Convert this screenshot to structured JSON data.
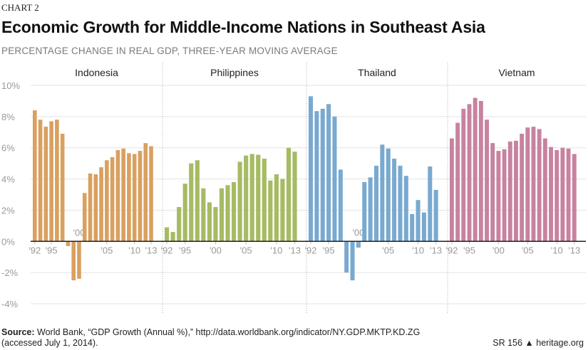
{
  "chart_label": "CHART 2",
  "title": "Economic Growth for Middle-Income Nations in Southeast Asia",
  "subtitle": "PERCENTAGE CHANGE IN REAL GDP, THREE-YEAR MOVING AVERAGE",
  "source_label": "Source:",
  "source_text": "World Bank, “GDP Growth (Annual %),” http://data.worldbank.org/indicator/NY.GDP.MKTP.KD.ZG",
  "source_text2": "(accessed July 1, 2014).",
  "report_id": "SR 156",
  "publisher": "heritage.org",
  "colors": {
    "Indonesia": "#d9a05f",
    "Philippines": "#a6bb63",
    "Thailand": "#79a9cf",
    "Vietnam": "#c7829f",
    "grid": "#e3e3e3",
    "zero": "#222222"
  },
  "chart_data": {
    "type": "bar",
    "title": "Economic Growth for Middle-Income Nations in Southeast Asia",
    "ylabel": "Percentage change in real GDP, three-year moving average",
    "ylim": [
      -4,
      10
    ],
    "yticks": [
      10,
      8,
      6,
      4,
      2,
      0,
      -2,
      -4
    ],
    "ytick_labels": [
      "10%",
      "8%",
      "6%",
      "4%",
      "2%",
      "0%",
      "-2%",
      "-4%"
    ],
    "grid": true,
    "x": [
      1992,
      1993,
      1994,
      1995,
      1996,
      1997,
      1998,
      1999,
      2000,
      2001,
      2002,
      2003,
      2004,
      2005,
      2006,
      2007,
      2008,
      2009,
      2010,
      2011,
      2012,
      2013
    ],
    "xtick_labels": {
      "1992": "'92",
      "1995": "'95",
      "2000": "'00",
      "2005": "'05",
      "2010": "'10",
      "2013": "'13"
    },
    "series": [
      {
        "name": "Indonesia",
        "values": [
          8.4,
          7.8,
          7.35,
          7.7,
          7.8,
          6.9,
          -0.3,
          -2.5,
          -2.4,
          3.1,
          4.35,
          4.3,
          4.75,
          5.2,
          5.4,
          5.85,
          5.95,
          5.65,
          5.6,
          5.8,
          6.3,
          6.1
        ]
      },
      {
        "name": "Philippines",
        "values": [
          0.9,
          0.6,
          2.2,
          3.7,
          5.0,
          5.2,
          3.4,
          2.5,
          2.2,
          3.4,
          3.6,
          3.8,
          5.1,
          5.5,
          5.6,
          5.55,
          5.3,
          3.9,
          4.3,
          4.0,
          6.0,
          5.75
        ]
      },
      {
        "name": "Thailand",
        "values": [
          9.3,
          8.35,
          8.5,
          8.8,
          8.0,
          4.6,
          -2.0,
          -2.5,
          -0.4,
          3.8,
          4.1,
          4.85,
          6.2,
          5.95,
          5.3,
          4.85,
          4.2,
          1.75,
          2.65,
          1.85,
          4.8,
          3.3
        ]
      },
      {
        "name": "Vietnam",
        "values": [
          6.6,
          7.6,
          8.5,
          8.8,
          9.2,
          9.0,
          7.8,
          6.3,
          5.8,
          5.9,
          6.4,
          6.45,
          6.9,
          7.3,
          7.35,
          7.2,
          6.6,
          6.05,
          5.85,
          6.0,
          5.95,
          5.6
        ]
      }
    ]
  }
}
